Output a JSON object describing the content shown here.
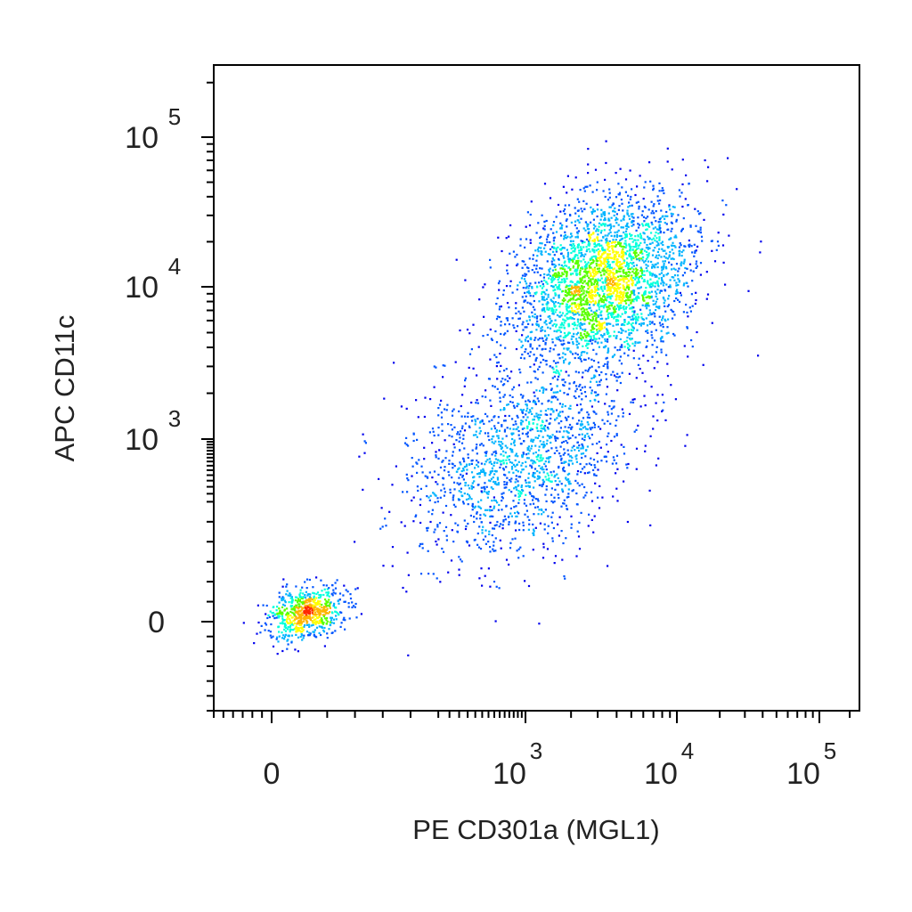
{
  "chart_data": {
    "type": "scatter",
    "subtype": "flow-cytometry-density-dot-plot",
    "xlabel": "PE CD301a (MGL1)",
    "ylabel": "APC CD11c",
    "x_scale": "biexponential",
    "y_scale": "biexponential",
    "x_ticks": [
      {
        "value": 0,
        "base": "0",
        "exp": ""
      },
      {
        "value": 1000,
        "base": "10",
        "exp": "3"
      },
      {
        "value": 10000,
        "base": "10",
        "exp": "4"
      },
      {
        "value": 100000,
        "base": "10",
        "exp": "5"
      }
    ],
    "y_ticks": [
      {
        "value": 0,
        "base": "0",
        "exp": ""
      },
      {
        "value": 1000,
        "base": "10",
        "exp": "3"
      },
      {
        "value": 10000,
        "base": "10",
        "exp": "4"
      },
      {
        "value": 100000,
        "base": "10",
        "exp": "5"
      }
    ],
    "xlim": [
      -300,
      250000
    ],
    "ylim": [
      -300,
      250000
    ],
    "grid": false,
    "legend": "none",
    "density_colors": [
      "#0000ee",
      "#0055ff",
      "#00b4ff",
      "#00ffdc",
      "#5aff00",
      "#ffff00",
      "#ffb400",
      "#ff2800"
    ],
    "populations": [
      {
        "name_hidden": true,
        "x_center": 60,
        "y_center": 25,
        "x_spread": 0.13,
        "y_spread": 0.1,
        "fraction": 0.13
      },
      {
        "name_hidden": true,
        "x_center": 3200,
        "y_center": 11000,
        "x_spread": 0.3,
        "y_spread": 0.33,
        "fraction": 0.57
      },
      {
        "name_hidden": true,
        "x_center": 900,
        "y_center": 700,
        "x_spread": 0.38,
        "y_spread": 0.38,
        "fraction": 0.3
      }
    ]
  }
}
